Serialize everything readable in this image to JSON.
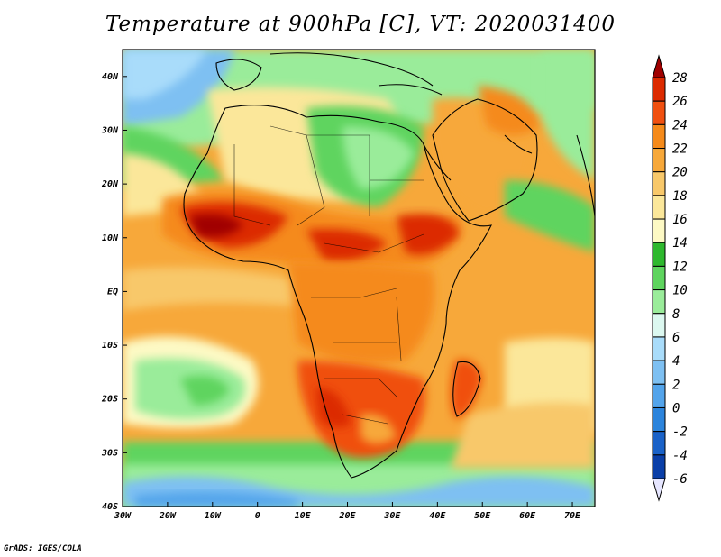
{
  "title": "Temperature at 900hPa [C], VT: 2020031400",
  "credit": "GrADS: IGES/COLA",
  "map": {
    "lon_range": [
      -30,
      75
    ],
    "lat_range": [
      -40,
      45
    ],
    "lon_ticks": [
      "30W",
      "20W",
      "10W",
      "0",
      "10E",
      "20E",
      "30E",
      "40E",
      "50E",
      "60E",
      "70E"
    ],
    "lat_ticks": [
      "40S",
      "30S",
      "20S",
      "10S",
      "EQ",
      "10N",
      "20N",
      "30N",
      "40N"
    ]
  },
  "colorbar": {
    "labels": [
      "28",
      "26",
      "24",
      "22",
      "20",
      "18",
      "16",
      "14",
      "12",
      "10",
      "8",
      "6",
      "4",
      "2",
      "0",
      "-2",
      "-4",
      "-6"
    ],
    "colors": [
      "#a00000",
      "#dc2a00",
      "#f05010",
      "#f58a1a",
      "#f7a83a",
      "#f8c86a",
      "#fbe79a",
      "#fdf9c4",
      "#2eb82e",
      "#5ed45e",
      "#9aec9a",
      "#dcf8f0",
      "#a9dcfa",
      "#7ec0f2",
      "#53a4eb",
      "#2c84dc",
      "#1a62c8",
      "#0a3fa8",
      "#061f70"
    ]
  }
}
